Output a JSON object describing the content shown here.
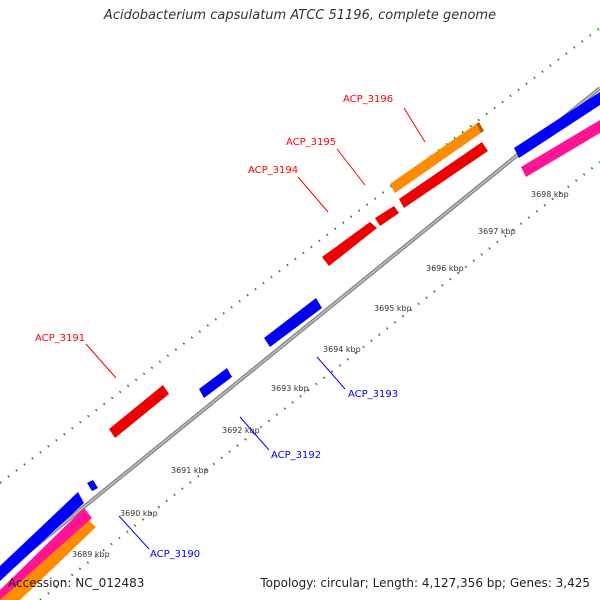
{
  "title": "Acidobacterium capsulatum ATCC 51196, complete genome",
  "footer": {
    "accession": "Accession: NC_012483",
    "summary": "Topology: circular; Length: 4,127,356 bp; Genes: 3,425"
  },
  "colors": {
    "forward": "#ff0000",
    "reverse": "#0000ff",
    "orange": "#ff8c00",
    "pink": "#ff1493",
    "backbone": "#888888",
    "dots": "#2e8b2e"
  },
  "ticks": [
    {
      "label": "3689 kbp"
    },
    {
      "label": "3690 kbp"
    },
    {
      "label": "3691 kbp"
    },
    {
      "label": "3692 kbp"
    },
    {
      "label": "3693 kbp"
    },
    {
      "label": "3694 kbp"
    },
    {
      "label": "3695 kbp"
    },
    {
      "label": "3696 kbp"
    },
    {
      "label": "3697 kbp"
    },
    {
      "label": "3698 kbp"
    }
  ],
  "genes": [
    {
      "name": "ACP_3196",
      "strand": "forward"
    },
    {
      "name": "ACP_3195",
      "strand": "forward"
    },
    {
      "name": "ACP_3194",
      "strand": "forward"
    },
    {
      "name": "ACP_3191",
      "strand": "forward"
    },
    {
      "name": "ACP_3193",
      "strand": "reverse"
    },
    {
      "name": "ACP_3192",
      "strand": "reverse"
    },
    {
      "name": "ACP_3190",
      "strand": "reverse"
    }
  ]
}
